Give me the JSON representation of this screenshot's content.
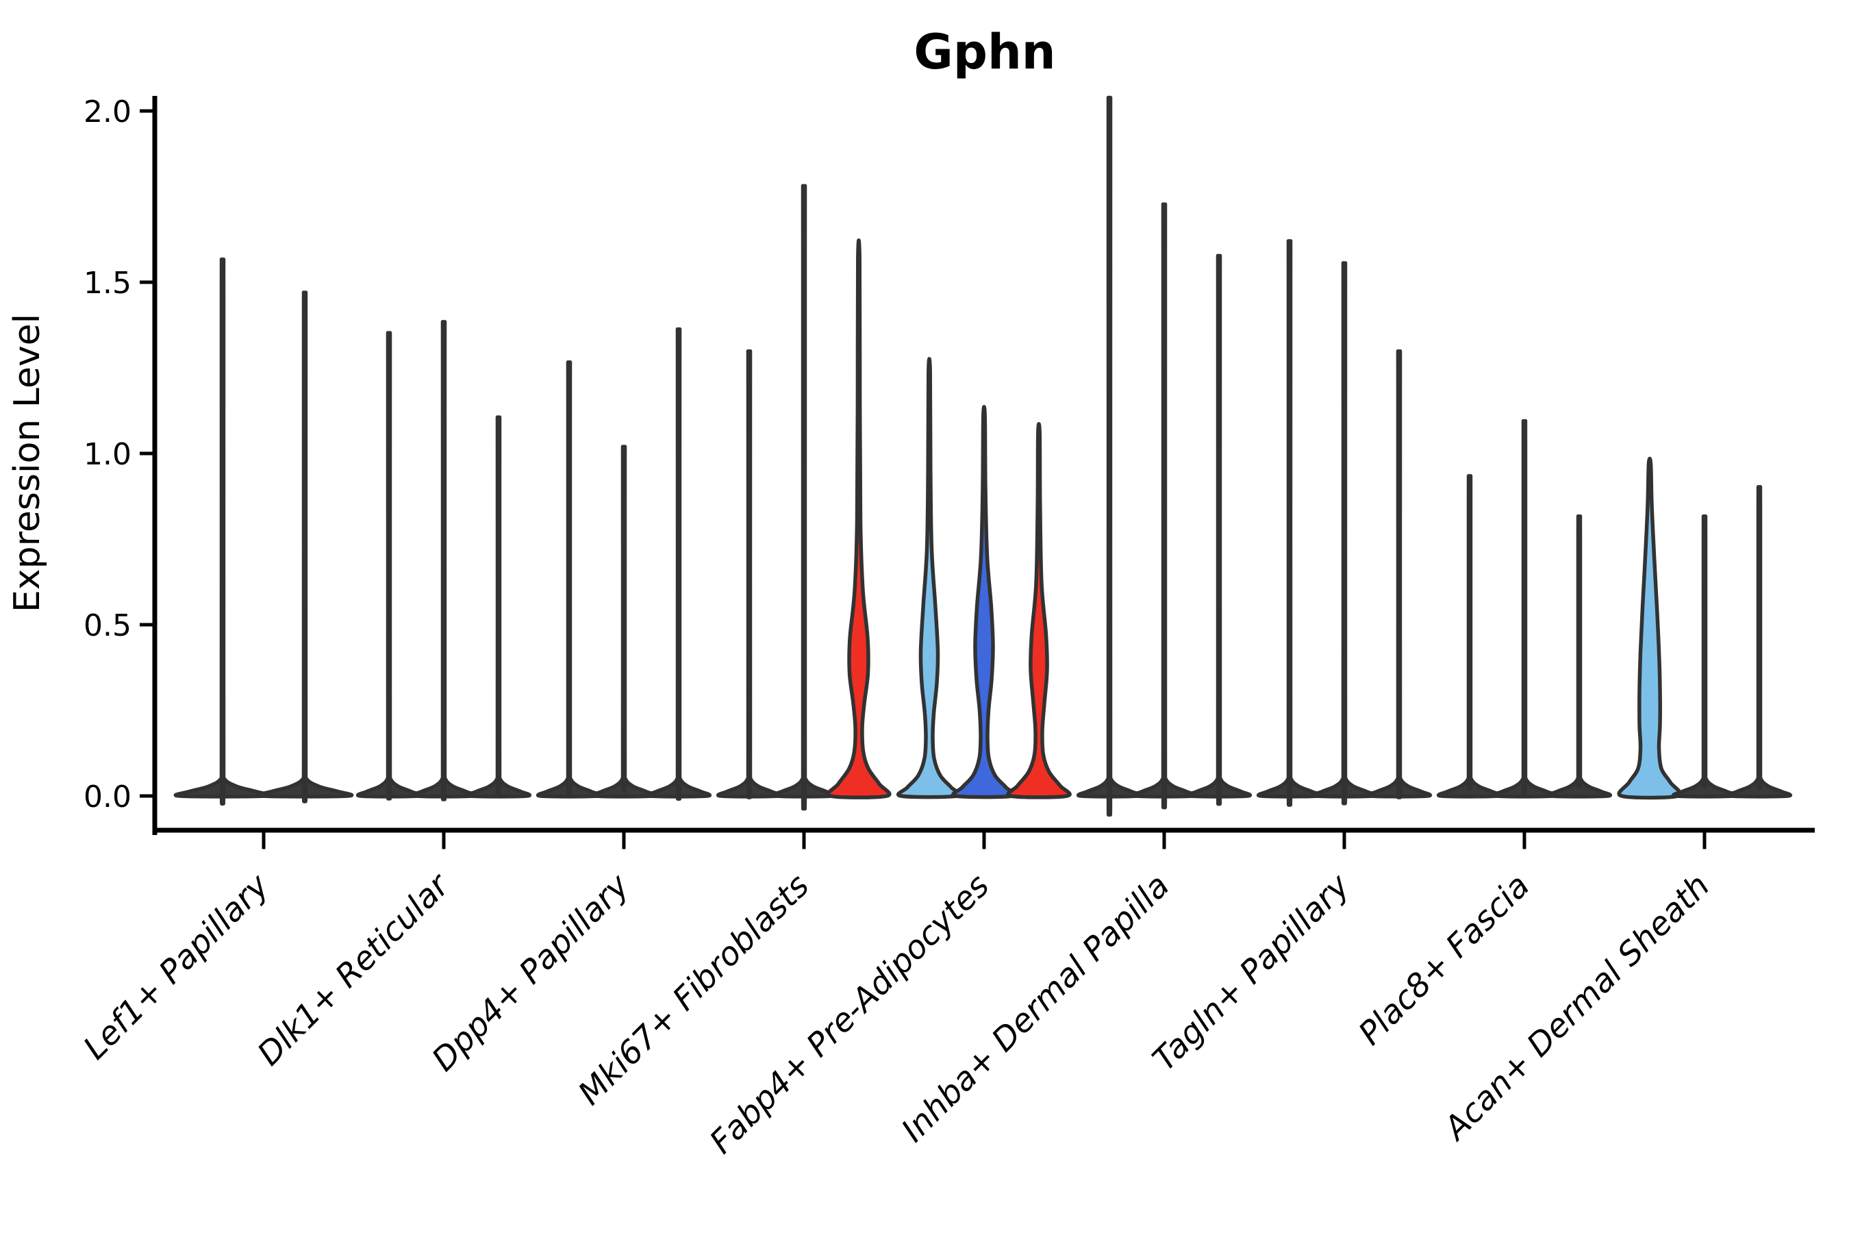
{
  "title": "Gphn",
  "y_axis": {
    "label": "Expression Level"
  },
  "chart_data": {
    "type": "violin",
    "title": "Gphn",
    "ylabel": "Expression Level",
    "xlabel": "",
    "ylim": [
      0,
      2.0
    ],
    "yticks": [
      0.0,
      0.5,
      1.0,
      1.5,
      2.0
    ],
    "ytick_labels": [
      "0.0",
      "0.5",
      "1.0",
      "1.5",
      "2.0"
    ],
    "x_tick_rotation": 45,
    "grid": false,
    "legend": "none",
    "categories": [
      "Lef1+ Papillary",
      "Dlk1+ Reticular",
      "Dpp4+ Papillary",
      "Mki67+ Fibroblasts",
      "Fabp4+ Pre-Adipocytes",
      "Inhba+ Dermal Papilla",
      "Tagln+ Papillary",
      "Plac8+ Fascia",
      "Acan+ Dermal Sheath"
    ],
    "palette": {
      "dark": "#3A3A3A",
      "red": "#EF2F23",
      "light_blue": "#7CC0EA",
      "royal_blue": "#3E68DB",
      "outline": "#323232",
      "axis": "#000000"
    },
    "series": [
      {
        "category": "Lef1+ Papillary",
        "violins": [
          {
            "max": 1.5,
            "color": "dark"
          },
          {
            "max": 1.41,
            "color": "dark"
          }
        ]
      },
      {
        "category": "Dlk1+ Reticular",
        "violins": [
          {
            "max": 1.3,
            "color": "dark"
          },
          {
            "max": 1.33,
            "color": "dark"
          },
          {
            "max": 1.07,
            "color": "dark"
          }
        ]
      },
      {
        "category": "Dpp4+ Papillary",
        "violins": [
          {
            "max": 1.22,
            "color": "dark"
          },
          {
            "max": 0.99,
            "color": "dark"
          },
          {
            "max": 1.31,
            "color": "dark"
          }
        ]
      },
      {
        "category": "Mki67+ Fibroblasts",
        "violins": [
          {
            "max": 1.25,
            "color": "dark"
          },
          {
            "max": 1.7,
            "color": "dark"
          },
          {
            "max": 1.57,
            "color": "red",
            "profile": [
              [
                1.57,
                1.2
              ],
              [
                1.15,
                1.6
              ],
              [
                0.8,
                2.5
              ],
              [
                0.6,
                6
              ],
              [
                0.46,
                13
              ],
              [
                0.36,
                13.5
              ],
              [
                0.27,
                8
              ],
              [
                0.2,
                5
              ],
              [
                0.13,
                6.5
              ],
              [
                0.08,
                14
              ],
              [
                0.035,
                30
              ],
              [
                0,
                41
              ]
            ]
          }
        ]
      },
      {
        "category": "Fabp4+ Pre-Adipocytes",
        "violins": [
          {
            "max": 1.24,
            "color": "light_blue",
            "profile": [
              [
                1.24,
                1.2
              ],
              [
                0.95,
                1.8
              ],
              [
                0.72,
                3.5
              ],
              [
                0.55,
                9
              ],
              [
                0.42,
                12.5
              ],
              [
                0.33,
                11
              ],
              [
                0.24,
                6.5
              ],
              [
                0.17,
                5
              ],
              [
                0.11,
                7
              ],
              [
                0.06,
                16
              ],
              [
                0.025,
                32
              ],
              [
                0,
                41
              ]
            ]
          },
          {
            "max": 1.11,
            "color": "royal_blue",
            "profile": [
              [
                1.11,
                1.2
              ],
              [
                0.9,
                2
              ],
              [
                0.7,
                4.5
              ],
              [
                0.55,
                10.5
              ],
              [
                0.44,
                13
              ],
              [
                0.34,
                11
              ],
              [
                0.25,
                6.5
              ],
              [
                0.17,
                5
              ],
              [
                0.11,
                7
              ],
              [
                0.06,
                16
              ],
              [
                0.025,
                32
              ],
              [
                0,
                41
              ]
            ]
          },
          {
            "max": 1.06,
            "color": "red",
            "profile": [
              [
                1.06,
                1.2
              ],
              [
                0.85,
                1.8
              ],
              [
                0.62,
                4
              ],
              [
                0.47,
                10.5
              ],
              [
                0.37,
                12
              ],
              [
                0.27,
                8
              ],
              [
                0.19,
                5
              ],
              [
                0.12,
                6.5
              ],
              [
                0.07,
                15
              ],
              [
                0.03,
                31
              ],
              [
                0,
                41
              ]
            ]
          }
        ]
      },
      {
        "category": "Inhba+ Dermal Papilla",
        "violins": [
          {
            "max": 1.94,
            "color": "dark"
          },
          {
            "max": 1.65,
            "color": "dark"
          },
          {
            "max": 1.51,
            "color": "dark"
          }
        ]
      },
      {
        "category": "Tagln+ Papillary",
        "violins": [
          {
            "max": 1.55,
            "color": "dark"
          },
          {
            "max": 1.49,
            "color": "dark"
          },
          {
            "max": 1.25,
            "color": "dark"
          }
        ]
      },
      {
        "category": "Plac8+ Fascia",
        "violins": [
          {
            "max": 0.91,
            "color": "dark"
          },
          {
            "max": 1.06,
            "color": "dark"
          },
          {
            "max": 0.8,
            "color": "dark"
          }
        ]
      },
      {
        "category": "Acan+ Dermal Sheath",
        "violins": [
          {
            "max": 0.97,
            "color": "light_blue",
            "profile": [
              [
                0.97,
                1.5
              ],
              [
                0.85,
                3
              ],
              [
                0.7,
                6.5
              ],
              [
                0.55,
                10.5
              ],
              [
                0.42,
                13.5
              ],
              [
                0.31,
                15
              ],
              [
                0.21,
                15
              ],
              [
                0.14,
                13.5
              ],
              [
                0.08,
                17
              ],
              [
                0.04,
                30
              ],
              [
                0,
                41
              ]
            ]
          },
          {
            "max": 0.8,
            "color": "dark"
          },
          {
            "max": 0.88,
            "color": "dark"
          }
        ]
      }
    ]
  }
}
